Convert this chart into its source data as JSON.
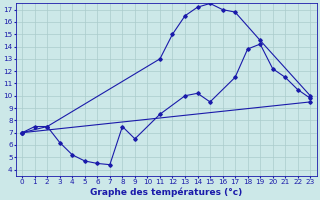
{
  "line1_x": [
    0,
    1,
    2,
    11,
    12,
    13,
    14,
    15,
    16,
    17,
    19,
    23
  ],
  "line1_y": [
    7.0,
    7.5,
    7.5,
    13.0,
    15.0,
    16.5,
    17.2,
    17.5,
    17.0,
    16.8,
    14.5,
    10.0
  ],
  "line2_x": [
    0,
    2,
    3,
    4,
    5,
    6,
    7,
    8,
    9,
    11,
    13,
    14,
    15,
    17,
    18,
    19,
    20,
    21,
    22,
    23
  ],
  "line2_y": [
    7.0,
    7.5,
    6.2,
    5.2,
    4.7,
    4.5,
    4.4,
    7.5,
    6.5,
    8.5,
    10.0,
    10.2,
    9.5,
    11.5,
    13.8,
    14.2,
    12.2,
    11.5,
    10.5,
    9.8
  ],
  "line3_x": [
    0,
    23
  ],
  "line3_y": [
    7.0,
    9.5
  ],
  "line_color": "#1a1aaa",
  "bg_color": "#cce8e8",
  "grid_color": "#aacccc",
  "xlabel": "Graphe des températures (°c)",
  "xlim": [
    -0.5,
    23.5
  ],
  "ylim": [
    3.5,
    17.5
  ],
  "xticks": [
    0,
    1,
    2,
    3,
    4,
    5,
    6,
    7,
    8,
    9,
    10,
    11,
    12,
    13,
    14,
    15,
    16,
    17,
    18,
    19,
    20,
    21,
    22,
    23
  ],
  "yticks": [
    4,
    5,
    6,
    7,
    8,
    9,
    10,
    11,
    12,
    13,
    14,
    15,
    16,
    17
  ],
  "tick_fontsize": 5.2,
  "xlabel_fontsize": 6.5,
  "marker": "D",
  "marker_size": 1.8,
  "line_width": 0.8
}
